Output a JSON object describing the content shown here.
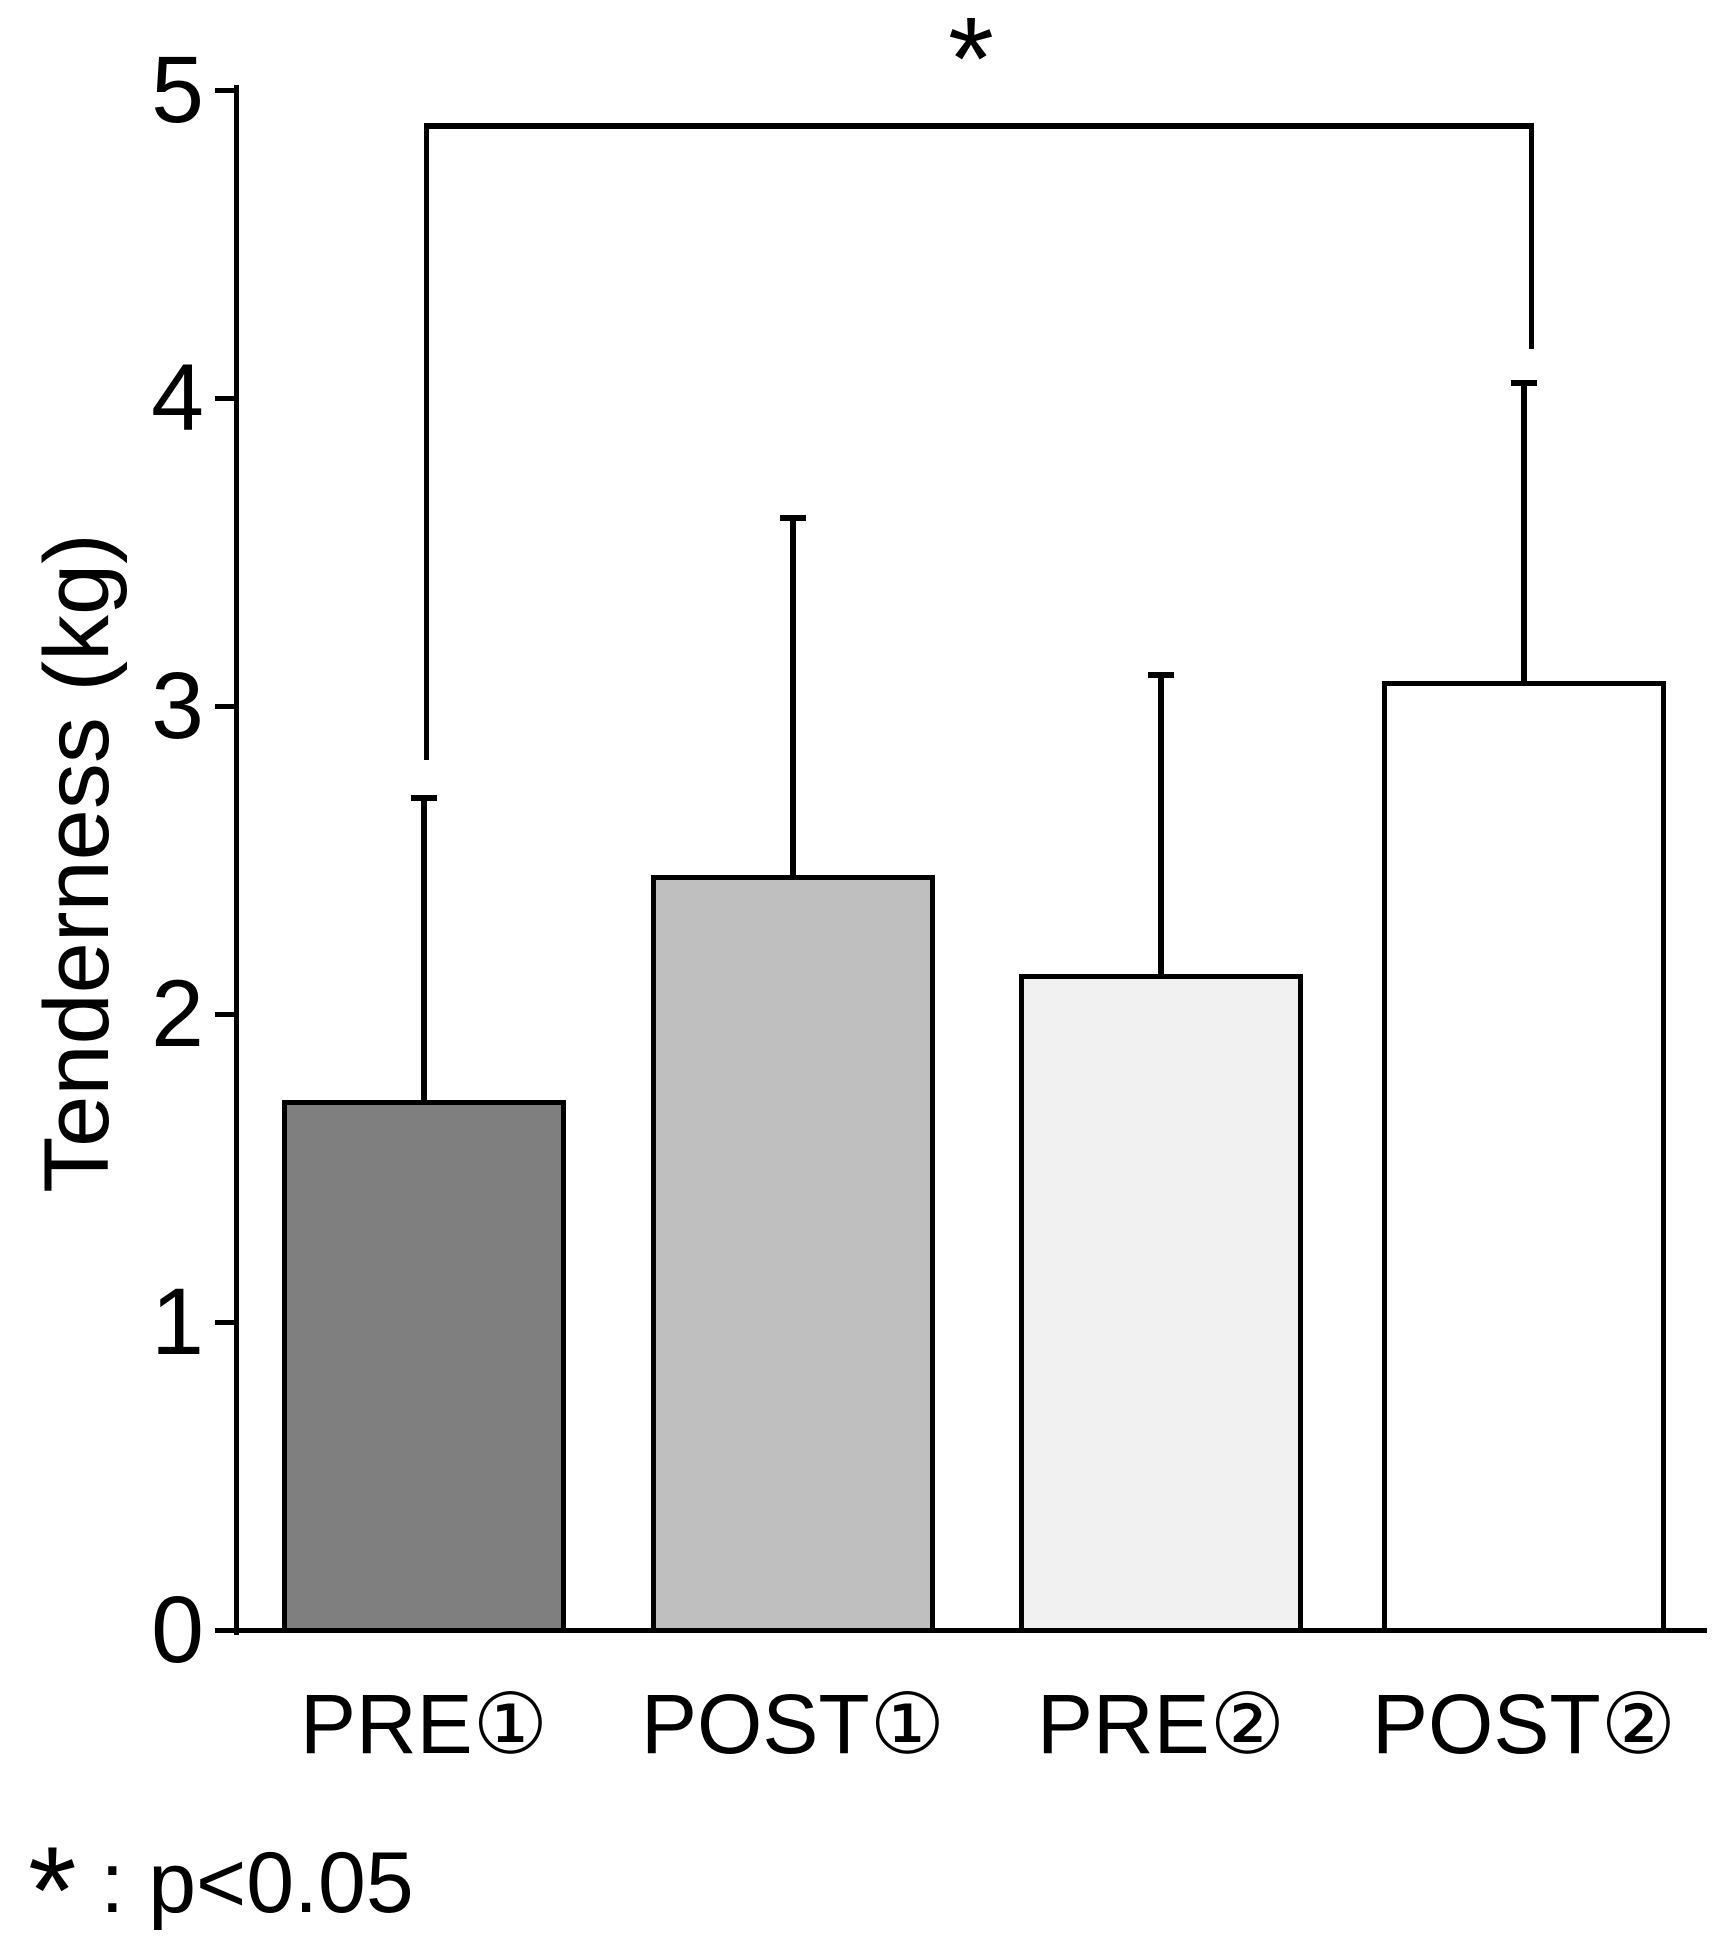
{
  "chart_data": {
    "type": "bar",
    "title": "",
    "ylabel": "Tenderness (kg)",
    "xlabel": "",
    "ylim": [
      0,
      5
    ],
    "yticks": [
      0,
      1,
      2,
      3,
      4,
      5
    ],
    "grid": false,
    "legend": "none",
    "categories": [
      "PRE①",
      "POST①",
      "PRE②",
      "POST②"
    ],
    "values": [
      1.72,
      2.45,
      2.13,
      3.08
    ],
    "errors_upper": [
      0.99,
      1.17,
      0.98,
      0.98
    ],
    "bar_colors": [
      "#7f7f7f",
      "#bfbfbf",
      "#f1f1f1",
      "#ffffff"
    ],
    "bar_border_color": "#000000",
    "significance": {
      "symbol": "*",
      "from_category": "PRE①",
      "to_category": "POST②",
      "note": "p<0.05"
    }
  },
  "footnote": {
    "symbol": "*",
    "separator": " : ",
    "text": "p<0.05"
  }
}
